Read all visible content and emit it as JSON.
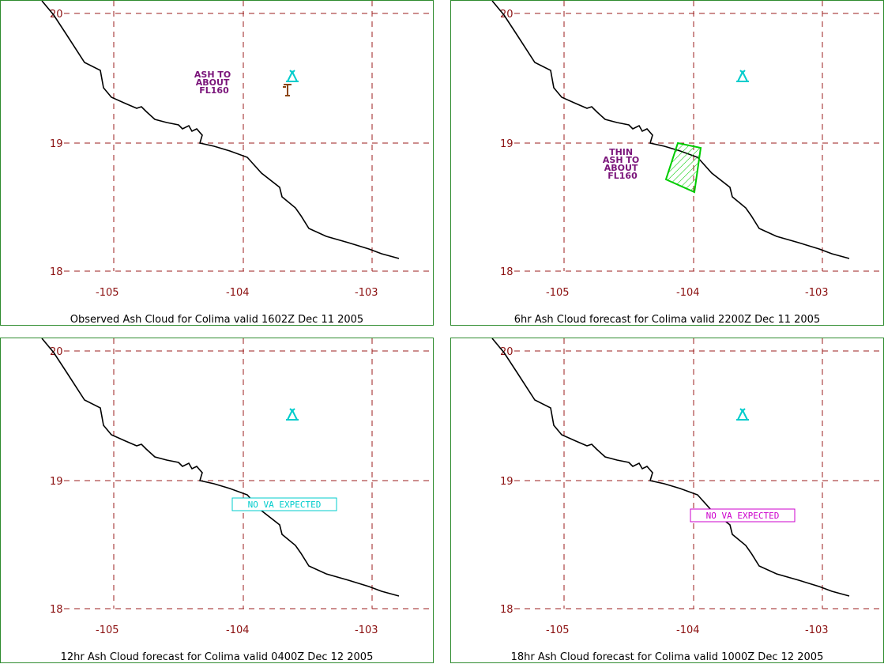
{
  "panels": [
    {
      "id": "obs",
      "caption": "Observed Ash Cloud for Colima valid 1602Z Dec 11 2005",
      "annotation": [
        "ASH TO",
        "ABOUT",
        "FL160"
      ],
      "annotation_color": "#7a147a",
      "volcano_icon": "volcano-triangle-icon",
      "extra_icon": "eruption-plume-icon",
      "ash_polygon": false,
      "no_va_label": ""
    },
    {
      "id": "fc6",
      "caption": "6hr Ash Cloud forecast for Colima valid 2200Z Dec 11 2005",
      "annotation": [
        "THIN",
        "ASH TO",
        "ABOUT",
        "FL160"
      ],
      "annotation_color": "#7a147a",
      "volcano_icon": "volcano-triangle-icon",
      "extra_icon": "",
      "ash_polygon": true,
      "ash_polygon_color": "#00cc00",
      "no_va_label": ""
    },
    {
      "id": "fc12",
      "caption": "12hr Ash Cloud forecast for Colima valid 0400Z Dec 12 2005",
      "annotation": [],
      "volcano_icon": "volcano-triangle-icon",
      "extra_icon": "",
      "ash_polygon": false,
      "no_va_label": "NO VA EXPECTED",
      "no_va_color": "#00cccc"
    },
    {
      "id": "fc18",
      "caption": "18hr Ash Cloud forecast for Colima valid 1000Z Dec 12 2005",
      "annotation": [],
      "volcano_icon": "volcano-triangle-icon",
      "extra_icon": "",
      "ash_polygon": false,
      "no_va_label": "NO VA EXPECTED",
      "no_va_color": "#cc00cc"
    }
  ],
  "axes": {
    "lat_labels": [
      "20",
      "19",
      "18"
    ],
    "lon_labels": [
      "-105",
      "-104",
      "-103"
    ]
  },
  "colors": {
    "grid": "#9b1c1c",
    "coastline": "#000000",
    "border": "#2e8b2e",
    "volcano": "#00cccc"
  }
}
